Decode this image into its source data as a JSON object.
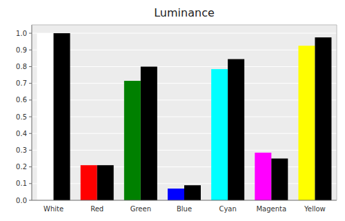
{
  "chart_data": {
    "type": "bar",
    "title": "Luminance",
    "categories": [
      "White",
      "Red",
      "Green",
      "Blue",
      "Cyan",
      "Magenta",
      "Yellow"
    ],
    "series": [
      {
        "colors": [
          "#ffffff",
          "#ff0000",
          "#008000",
          "#0000ff",
          "#00ffff",
          "#ff00ff",
          "#ffff00"
        ],
        "values": [
          1.0,
          0.21,
          0.715,
          0.07,
          0.785,
          0.285,
          0.925
        ]
      },
      {
        "color": "#000000",
        "values": [
          1.0,
          0.21,
          0.8,
          0.09,
          0.845,
          0.25,
          0.975
        ]
      }
    ],
    "ylim": [
      0.0,
      1.05
    ],
    "yticks": [
      {
        "value": 0.0,
        "label": "0.0"
      },
      0.1,
      0.2,
      0.3,
      0.4,
      0.5,
      0.6,
      0.7,
      0.8,
      0.9,
      {
        "value": 1.0,
        "label": "1.0"
      }
    ],
    "grid": true
  }
}
